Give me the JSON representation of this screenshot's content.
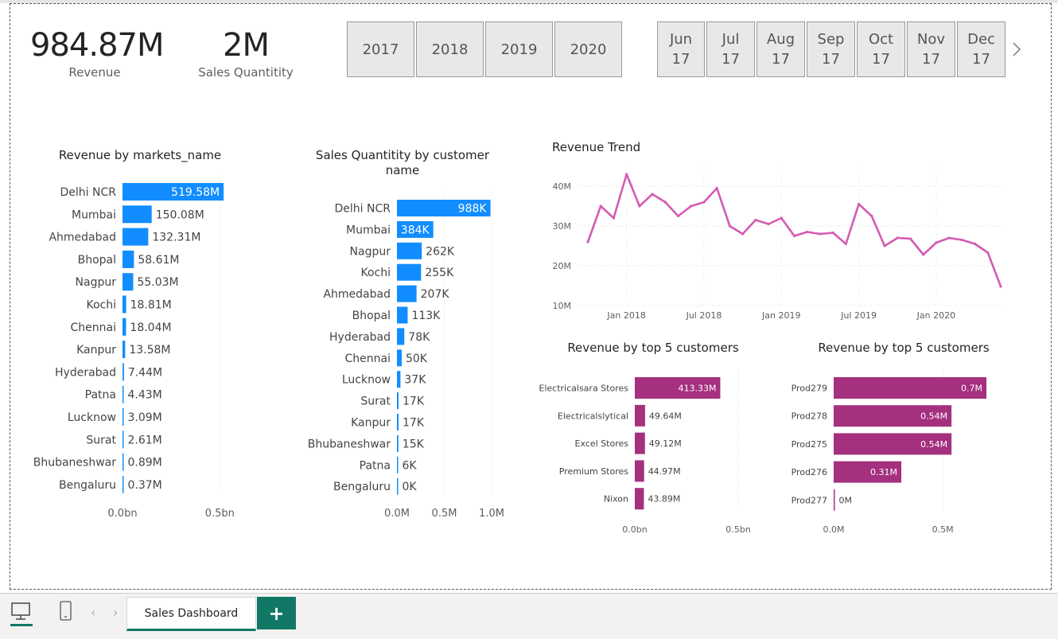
{
  "kpis": {
    "revenue": {
      "value": "984.87M",
      "label": "Revenue"
    },
    "quantity": {
      "value": "2M",
      "label": "Sales Quantitity"
    }
  },
  "year_slicer": [
    "2017",
    "2018",
    "2019",
    "2020"
  ],
  "month_slicer": [
    {
      "m": "Jun",
      "y": "17"
    },
    {
      "m": "Jul",
      "y": "17"
    },
    {
      "m": "Aug",
      "y": "17"
    },
    {
      "m": "Sep",
      "y": "17"
    },
    {
      "m": "Oct",
      "y": "17"
    },
    {
      "m": "Nov",
      "y": "17"
    },
    {
      "m": "Dec",
      "y": "17"
    }
  ],
  "colors": {
    "blue": "#118dff",
    "magenta": "#a4307f",
    "trend": "#d45bb2",
    "teal": "#117865"
  },
  "icons": {
    "next": "chevron-right-icon",
    "desktop": "desktop-icon",
    "phone": "phone-icon"
  },
  "bottom": {
    "page_tab": "Sales Dashboard",
    "add": "+",
    "prev_arrow": "‹",
    "next_arrow": "›"
  },
  "chart_data": [
    {
      "id": "markets",
      "type": "bar",
      "orientation": "horizontal",
      "title": "Revenue by markets_name",
      "categories": [
        "Delhi NCR",
        "Mumbai",
        "Ahmedabad",
        "Bhopal",
        "Nagpur",
        "Kochi",
        "Chennai",
        "Kanpur",
        "Hyderabad",
        "Patna",
        "Lucknow",
        "Surat",
        "Bhubaneshwar",
        "Bengaluru"
      ],
      "values": [
        519.58,
        150.08,
        132.31,
        58.61,
        55.03,
        18.81,
        18.04,
        13.58,
        7.44,
        4.43,
        3.09,
        2.61,
        0.89,
        0.37
      ],
      "labels": [
        "519.58M",
        "150.08M",
        "132.31M",
        "58.61M",
        "55.03M",
        "18.81M",
        "18.04M",
        "13.58M",
        "7.44M",
        "4.43M",
        "3.09M",
        "2.61M",
        "0.89M",
        "0.37M"
      ],
      "unit": "M",
      "xlim": [
        0,
        560
      ],
      "xticks": [
        {
          "v": 0,
          "label": "0.0bn"
        },
        {
          "v": 500,
          "label": "0.5bn"
        }
      ]
    },
    {
      "id": "customers",
      "type": "bar",
      "orientation": "horizontal",
      "title": "Sales Quantitity by customer name",
      "categories": [
        "Delhi NCR",
        "Mumbai",
        "Nagpur",
        "Kochi",
        "Ahmedabad",
        "Bhopal",
        "Hyderabad",
        "Chennai",
        "Lucknow",
        "Surat",
        "Kanpur",
        "Bhubaneshwar",
        "Patna",
        "Bengaluru"
      ],
      "values": [
        988,
        384,
        262,
        255,
        207,
        113,
        78,
        50,
        37,
        17,
        17,
        15,
        6,
        0
      ],
      "labels": [
        "988K",
        "384K",
        "262K",
        "255K",
        "207K",
        "113K",
        "78K",
        "50K",
        "37K",
        "17K",
        "17K",
        "15K",
        "6K",
        "0K"
      ],
      "unit": "K",
      "xlim": [
        0,
        1000
      ],
      "xticks": [
        {
          "v": 0,
          "label": "0.0M"
        },
        {
          "v": 500,
          "label": "0.5M"
        },
        {
          "v": 1000,
          "label": "1.0M"
        }
      ]
    },
    {
      "id": "trend",
      "type": "line",
      "title": "Revenue Trend",
      "x": [
        "Oct 2017",
        "Nov 2017",
        "Dec 2017",
        "Jan 2018",
        "Feb 2018",
        "Mar 2018",
        "Apr 2018",
        "May 2018",
        "Jun 2018",
        "Jul 2018",
        "Aug 2018",
        "Sep 2018",
        "Oct 2018",
        "Nov 2018",
        "Dec 2018",
        "Jan 2019",
        "Feb 2019",
        "Mar 2019",
        "Apr 2019",
        "May 2019",
        "Jun 2019",
        "Jul 2019",
        "Aug 2019",
        "Sep 2019",
        "Oct 2019",
        "Nov 2019",
        "Dec 2019",
        "Jan 2020",
        "Feb 2020",
        "Mar 2020",
        "Apr 2020",
        "May 2020",
        "Jun 2020"
      ],
      "values": [
        26,
        35,
        32,
        43,
        35,
        38,
        36,
        32.5,
        35,
        36,
        39.5,
        30,
        28,
        31.5,
        30.5,
        32,
        27.5,
        28.5,
        28,
        28.3,
        25.5,
        35.5,
        32.5,
        25,
        27,
        26.8,
        22.8,
        25.8,
        27,
        26.5,
        25.5,
        23.3,
        14.8
      ],
      "ylim": [
        10,
        45
      ],
      "yticks": [
        {
          "v": 10,
          "label": "10M"
        },
        {
          "v": 20,
          "label": "20M"
        },
        {
          "v": 30,
          "label": "30M"
        },
        {
          "v": 40,
          "label": "40M"
        }
      ],
      "xticks": [
        {
          "i": 3,
          "label": "Jan 2018"
        },
        {
          "i": 9,
          "label": "Jul 2018"
        },
        {
          "i": 15,
          "label": "Jan 2019"
        },
        {
          "i": 21,
          "label": "Jul 2019"
        },
        {
          "i": 27,
          "label": "Jan 2020"
        }
      ]
    },
    {
      "id": "top5cust",
      "type": "bar",
      "orientation": "horizontal",
      "title": "Revenue by top 5 customers",
      "categories": [
        "Electricalsara Stores",
        "Electricalslytical",
        "Excel Stores",
        "Premium Stores",
        "Nixon"
      ],
      "values": [
        413.33,
        49.64,
        49.12,
        44.97,
        43.89
      ],
      "labels": [
        "413.33M",
        "49.64M",
        "49.12M",
        "44.97M",
        "43.89M"
      ],
      "xlim": [
        0,
        500
      ],
      "xticks": [
        {
          "v": 0,
          "label": "0.0bn"
        },
        {
          "v": 500,
          "label": "0.5bn"
        }
      ]
    },
    {
      "id": "top5prod",
      "type": "bar",
      "orientation": "horizontal",
      "title": "Revenue by top 5 customers",
      "categories": [
        "Prod279",
        "Prod278",
        "Prod275",
        "Prod276",
        "Prod277"
      ],
      "values": [
        0.7,
        0.54,
        0.54,
        0.31,
        0
      ],
      "labels": [
        "0.7M",
        "0.54M",
        "0.54M",
        "0.31M",
        "0M"
      ],
      "xlim": [
        0,
        0.7
      ],
      "xticks": [
        {
          "v": 0,
          "label": "0.0M"
        },
        {
          "v": 0.5,
          "label": "0.5M"
        }
      ]
    }
  ]
}
